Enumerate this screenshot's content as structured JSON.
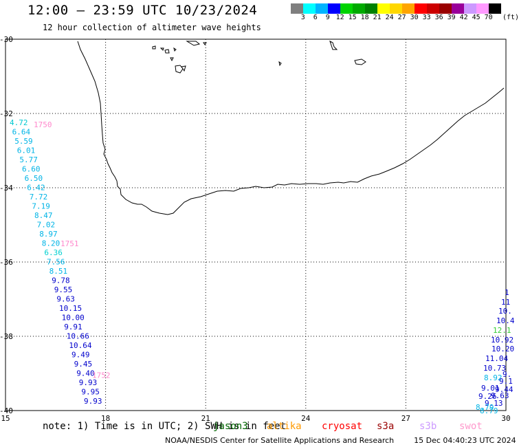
{
  "header": {
    "title": "12:00 – 23:59 UTC 10/23/2024",
    "subtitle": "12 hour collection of altimeter wave heights"
  },
  "colorbar": {
    "colors": [
      "#7f7f7f",
      "#00ffff",
      "#00b4ff",
      "#0000ff",
      "#00d400",
      "#00aa00",
      "#008000",
      "#ffff00",
      "#ffd700",
      "#ffa500",
      "#ff0000",
      "#cc0000",
      "#990000",
      "#990099",
      "#cc99ff",
      "#ff99ff",
      "#000000"
    ],
    "labels": [
      "3",
      "6",
      "9",
      "12",
      "15",
      "18",
      "21",
      "24",
      "27",
      "30",
      "33",
      "36",
      "39",
      "42",
      "45",
      "70"
    ],
    "unit": "(ft)"
  },
  "axes": {
    "lat_ticks": [
      "-30",
      "-32",
      "-34",
      "-36",
      "-38",
      "-40"
    ],
    "lon_ticks": [
      "15",
      "18",
      "21",
      "24",
      "27",
      "30"
    ]
  },
  "track_west": {
    "time_labels": [
      {
        "text": "1750",
        "lat": -32.3
      },
      {
        "text": "1751",
        "lat": -35.5
      },
      {
        "text": "1752",
        "lat": -39.05
      }
    ],
    "points": [
      {
        "v": "4.72",
        "color": "#00c8d0"
      },
      {
        "v": "6.64",
        "color": "#00b4e6"
      },
      {
        "v": "5.59",
        "color": "#00b4e6"
      },
      {
        "v": "6.01",
        "color": "#00b4e6"
      },
      {
        "v": "5.77",
        "color": "#00b4e6"
      },
      {
        "v": "6.60",
        "color": "#00b4e6"
      },
      {
        "v": "6.50",
        "color": "#00b4e6"
      },
      {
        "v": "6.42",
        "color": "#00b4e6"
      },
      {
        "v": "7.72",
        "color": "#00b4e6"
      },
      {
        "v": "7.19",
        "color": "#00b4e6"
      },
      {
        "v": "8.47",
        "color": "#00b4e6"
      },
      {
        "v": "7.02",
        "color": "#00b4e6"
      },
      {
        "v": "8.97",
        "color": "#00b4e6"
      },
      {
        "v": "8.20",
        "color": "#00b4e6"
      },
      {
        "v": "6.36",
        "color": "#00d0d0"
      },
      {
        "v": "7.56",
        "color": "#00b4e6"
      },
      {
        "v": "8.51",
        "color": "#00b4e6"
      },
      {
        "v": "9.78",
        "color": "#0000cc"
      },
      {
        "v": "9.55",
        "color": "#0000cc"
      },
      {
        "v": "9.63",
        "color": "#0000cc"
      },
      {
        "v": "10.15",
        "color": "#0000cc"
      },
      {
        "v": "10.00",
        "color": "#0000cc"
      },
      {
        "v": "9.91",
        "color": "#0000cc"
      },
      {
        "v": "10.66",
        "color": "#0000cc"
      },
      {
        "v": "10.64",
        "color": "#0000cc"
      },
      {
        "v": "9.49",
        "color": "#0000cc"
      },
      {
        "v": "9.45",
        "color": "#0000cc"
      },
      {
        "v": "9.40",
        "color": "#0000cc"
      },
      {
        "v": "9.93",
        "color": "#0000cc"
      },
      {
        "v": "9.95",
        "color": "#0000cc"
      },
      {
        "v": "9.93",
        "color": "#0000cc"
      }
    ]
  },
  "track_east": {
    "points": [
      {
        "v": "1",
        "color": "#0000cc"
      },
      {
        "v": "11",
        "color": "#0000cc"
      },
      {
        "v": "10.",
        "color": "#0000cc"
      },
      {
        "v": "10.4",
        "color": "#0000cc"
      },
      {
        "v": "12.1",
        "color": "#33cc33"
      },
      {
        "v": "10.92",
        "color": "#0000cc"
      },
      {
        "v": "10.20",
        "color": "#0000cc"
      },
      {
        "v": "11.04",
        "color": "#0000cc"
      },
      {
        "v": "10.73",
        "color": "#0000cc"
      },
      {
        "v": "9.",
        "color": "#0000cc"
      },
      {
        "v": "8.92",
        "color": "#00b4e6"
      },
      {
        "v": "9.1",
        "color": "#0000cc"
      },
      {
        "v": "9.01",
        "color": "#0000cc"
      },
      {
        "v": "9.44",
        "color": "#0000cc"
      },
      {
        "v": "9.26",
        "color": "#0000cc"
      },
      {
        "v": "9.63",
        "color": "#0000cc"
      },
      {
        "v": "9.13",
        "color": "#0000cc"
      },
      {
        "v": "8.79",
        "color": "#00b4e6"
      },
      {
        "v": "8.79",
        "color": "#00b4e6"
      }
    ]
  },
  "note": "note: 1) Time is in UTC; 2) SWH is in feet",
  "legend": [
    {
      "name": "jason3",
      "color": "#006600"
    },
    {
      "name": "altika",
      "color": "#ff9900"
    },
    {
      "name": "cryosat",
      "color": "#ff0000"
    },
    {
      "name": "s3a",
      "color": "#990000"
    },
    {
      "name": "s3b",
      "color": "#cc99ff"
    },
    {
      "name": "swot",
      "color": "#ff99cc"
    }
  ],
  "credit": {
    "org": "NOAA/NESDIS Center for Satellite Applications and Research",
    "timestamp": "15 Dec 04:40:23 UTC 2024"
  }
}
